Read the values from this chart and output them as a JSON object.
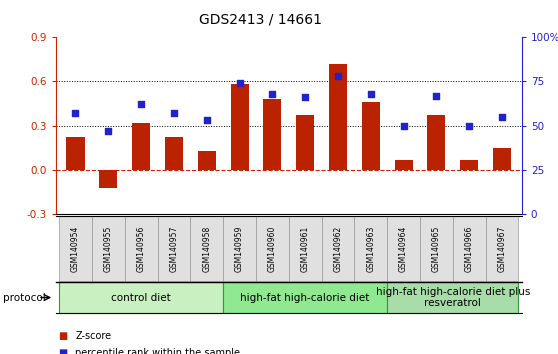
{
  "title": "GDS2413 / 14661",
  "samples": [
    "GSM140954",
    "GSM140955",
    "GSM140956",
    "GSM140957",
    "GSM140958",
    "GSM140959",
    "GSM140960",
    "GSM140961",
    "GSM140962",
    "GSM140963",
    "GSM140964",
    "GSM140965",
    "GSM140966",
    "GSM140967"
  ],
  "z_scores": [
    0.22,
    -0.12,
    0.32,
    0.22,
    0.13,
    0.58,
    0.48,
    0.37,
    0.72,
    0.46,
    0.07,
    0.37,
    0.07,
    0.15
  ],
  "percentile_ranks": [
    57,
    47,
    62,
    57,
    53,
    74,
    68,
    66,
    78,
    68,
    50,
    67,
    50,
    55
  ],
  "bar_color": "#bb2200",
  "dot_color": "#2222cc",
  "left_ylim": [
    -0.3,
    0.9
  ],
  "right_ylim": [
    0,
    100
  ],
  "left_yticks": [
    -0.3,
    0.0,
    0.3,
    0.6,
    0.9
  ],
  "right_yticks": [
    0,
    25,
    50,
    75,
    100
  ],
  "right_yticklabels": [
    "0",
    "25",
    "50",
    "75",
    "100%"
  ],
  "hline_zero_color": "#cc2200",
  "hline_dotted_vals": [
    0.3,
    0.6
  ],
  "groups": [
    {
      "label": "control diet",
      "start": 0,
      "end": 4,
      "color": "#c8f0c0"
    },
    {
      "label": "high-fat high-calorie diet",
      "start": 5,
      "end": 9,
      "color": "#90e890"
    },
    {
      "label": "high-fat high-calorie diet plus\nresveratrol",
      "start": 10,
      "end": 13,
      "color": "#a8dca8"
    }
  ],
  "legend_items": [
    {
      "label": "Z-score",
      "color": "#bb2200"
    },
    {
      "label": "percentile rank within the sample",
      "color": "#2222cc"
    }
  ],
  "protocol_label": "protocol",
  "tick_label_color_left": "#cc2200",
  "tick_label_color_right": "#2222cc",
  "title_fontsize": 10,
  "axis_fontsize": 7.5,
  "group_label_fontsize": 7.5,
  "dot_size": 22
}
